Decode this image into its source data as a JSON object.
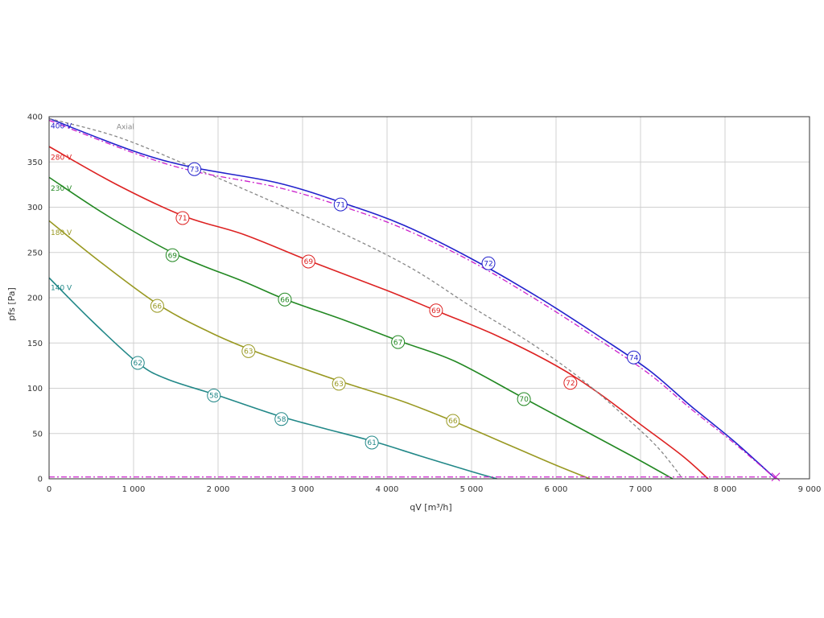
{
  "chart_data": {
    "type": "line",
    "xlabel": "qV [m³/h]",
    "ylabel": "pfs [Pa]",
    "xlim": [
      0,
      9000
    ],
    "ylim": [
      0,
      400
    ],
    "x_ticks": [
      0,
      1000,
      2000,
      3000,
      4000,
      5000,
      6000,
      7000,
      8000,
      9000
    ],
    "x_tick_labels": [
      "0",
      "1 000",
      "2 000",
      "3 000",
      "4 000",
      "5 000",
      "6 000",
      "7 000",
      "8 000",
      "9 000"
    ],
    "y_ticks": [
      0,
      50,
      100,
      150,
      200,
      250,
      300,
      350,
      400
    ],
    "y_tick_labels": [
      "0",
      "50",
      "100",
      "150",
      "200",
      "250",
      "300",
      "350",
      "400"
    ],
    "grid": true,
    "series": [
      {
        "name": "400 V",
        "color": "#2222cc",
        "points": [
          [
            0,
            398
          ],
          [
            1000,
            362
          ],
          [
            1700,
            344
          ],
          [
            2700,
            327
          ],
          [
            3500,
            304
          ],
          [
            4200,
            280
          ],
          [
            5000,
            243
          ],
          [
            5800,
            200
          ],
          [
            6500,
            158
          ],
          [
            7100,
            120
          ],
          [
            7600,
            80
          ],
          [
            8100,
            42
          ],
          [
            8600,
            0
          ]
        ],
        "markers": [
          [
            1720,
            342,
            "73"
          ],
          [
            3450,
            303,
            "71"
          ],
          [
            5200,
            238,
            "72"
          ],
          [
            6920,
            134,
            "74"
          ]
        ]
      },
      {
        "name": "280 V",
        "color": "#dd2222",
        "points": [
          [
            0,
            367
          ],
          [
            800,
            325
          ],
          [
            1600,
            290
          ],
          [
            2300,
            270
          ],
          [
            3100,
            240
          ],
          [
            4000,
            208
          ],
          [
            4600,
            185
          ],
          [
            5300,
            158
          ],
          [
            6000,
            125
          ],
          [
            6500,
            95
          ],
          [
            7000,
            60
          ],
          [
            7500,
            25
          ],
          [
            7800,
            0
          ]
        ],
        "markers": [
          [
            1580,
            288,
            "71"
          ],
          [
            3070,
            240,
            "69"
          ],
          [
            4580,
            186,
            "69"
          ],
          [
            6170,
            106,
            "72"
          ]
        ]
      },
      {
        "name": "230 V",
        "color": "#228822",
        "points": [
          [
            0,
            333
          ],
          [
            700,
            290
          ],
          [
            1500,
            248
          ],
          [
            2300,
            218
          ],
          [
            2800,
            198
          ],
          [
            3500,
            175
          ],
          [
            4150,
            152
          ],
          [
            4800,
            130
          ],
          [
            5600,
            90
          ],
          [
            6300,
            55
          ],
          [
            6900,
            25
          ],
          [
            7380,
            0
          ]
        ],
        "markers": [
          [
            1460,
            247,
            "69"
          ],
          [
            2790,
            198,
            "66"
          ],
          [
            4130,
            151,
            "67"
          ],
          [
            5620,
            88,
            "70"
          ]
        ]
      },
      {
        "name": "180 V",
        "color": "#999922",
        "points": [
          [
            0,
            285
          ],
          [
            600,
            240
          ],
          [
            1300,
            192
          ],
          [
            1900,
            162
          ],
          [
            2400,
            142
          ],
          [
            3000,
            122
          ],
          [
            3500,
            106
          ],
          [
            4200,
            85
          ],
          [
            4800,
            63
          ],
          [
            5500,
            35
          ],
          [
            6000,
            15
          ],
          [
            6400,
            0
          ]
        ],
        "markers": [
          [
            1280,
            191,
            "66"
          ],
          [
            2360,
            141,
            "63"
          ],
          [
            3430,
            105,
            "63"
          ],
          [
            4780,
            64,
            "66"
          ]
        ]
      },
      {
        "name": "140 V",
        "color": "#228888",
        "points": [
          [
            0,
            222
          ],
          [
            500,
            175
          ],
          [
            1050,
            128
          ],
          [
            1400,
            110
          ],
          [
            2000,
            92
          ],
          [
            2700,
            70
          ],
          [
            3200,
            57
          ],
          [
            3850,
            41
          ],
          [
            4400,
            25
          ],
          [
            5000,
            8
          ],
          [
            5300,
            0
          ]
        ],
        "markers": [
          [
            1050,
            128,
            "62"
          ],
          [
            1950,
            92,
            "58"
          ],
          [
            2750,
            66,
            "58"
          ],
          [
            3820,
            40,
            "61"
          ]
        ]
      },
      {
        "name": "Axial",
        "color": "#888888",
        "dashed": true,
        "points": [
          [
            0,
            398
          ],
          [
            800,
            378
          ],
          [
            1600,
            348
          ],
          [
            2500,
            312
          ],
          [
            3500,
            270
          ],
          [
            4300,
            232
          ],
          [
            5000,
            190
          ],
          [
            5700,
            150
          ],
          [
            6300,
            110
          ],
          [
            6800,
            70
          ],
          [
            7200,
            35
          ],
          [
            7500,
            0
          ]
        ]
      },
      {
        "name": "",
        "color": "#cc22cc",
        "dashdot": true,
        "points": [
          [
            0,
            396
          ],
          [
            1000,
            360
          ],
          [
            1700,
            340
          ],
          [
            2700,
            322
          ],
          [
            3500,
            300
          ],
          [
            4200,
            276
          ],
          [
            5000,
            240
          ],
          [
            5800,
            196
          ],
          [
            6500,
            154
          ],
          [
            7100,
            116
          ],
          [
            7600,
            77
          ],
          [
            8100,
            40
          ],
          [
            8600,
            0
          ]
        ]
      },
      {
        "name": "",
        "color": "#cc22cc",
        "dashdot": true,
        "points": [
          [
            0,
            2
          ],
          [
            8600,
            2
          ]
        ]
      }
    ],
    "label_texts": {
      "v400": "400 V",
      "v280": "280 V",
      "v230": "230 V",
      "v180": "180 V",
      "v140": "140 V",
      "axial": "Axial"
    }
  }
}
